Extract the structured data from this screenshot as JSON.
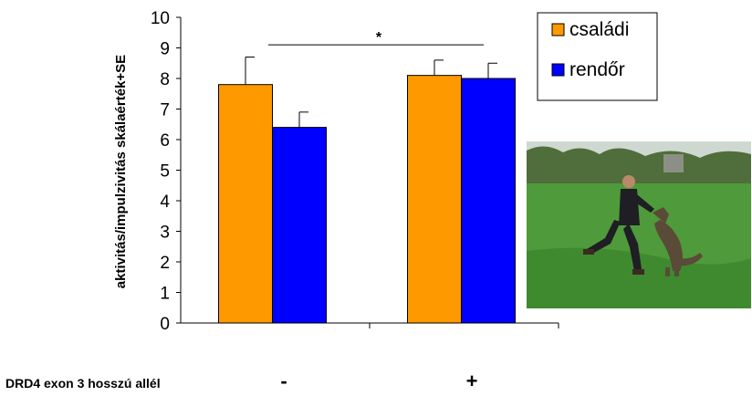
{
  "chart_data": {
    "type": "bar",
    "ylabel": "aktivitás/impulzivitás skálaérték+SE",
    "ylim": [
      0,
      10
    ],
    "yticks": [
      0,
      1,
      2,
      3,
      4,
      5,
      6,
      7,
      8,
      9,
      10
    ],
    "x_axis_title": "DRD4 exon 3 hosszú allél",
    "categories": [
      "-",
      "+"
    ],
    "series": [
      {
        "name": "családi",
        "color": "#FF9900",
        "values": [
          7.8,
          8.1
        ],
        "errors": [
          0.9,
          0.5
        ]
      },
      {
        "name": "rendőr",
        "color": "#0000FF",
        "values": [
          6.4,
          8.0
        ],
        "errors": [
          0.5,
          0.5
        ]
      }
    ],
    "annotations": [
      {
        "text": "*",
        "type": "significance-bracket",
        "between": [
          "családi -",
          "rendőr +"
        ],
        "y": 9.1
      }
    ],
    "legend": "top-right",
    "grid": false
  },
  "photo": {
    "icon": "dog-training-photo",
    "colors": {
      "sky": "#cfd8d0",
      "trees": "#4f6e3c",
      "grass": "#4f9a3a",
      "person": "#1e1e24",
      "dog": "#5a4a38"
    }
  }
}
